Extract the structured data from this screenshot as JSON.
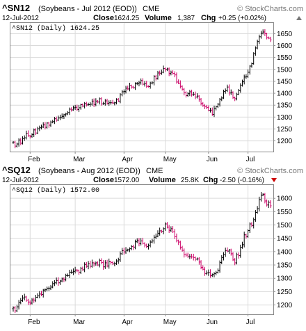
{
  "chart_data": [
    {
      "type": "ohlc",
      "symbol": "^SN12",
      "description": "(Soybeans - Jul 2012 (EOD))",
      "exchange": "CME",
      "brand": "© StockCharts.com",
      "date": "12-Jul-2012",
      "close_label": "Close",
      "close": "1624.25",
      "volume_label": "Volume",
      "volume": "1,387",
      "chg_label": "Chg",
      "chg": "+0.25 (+0.02%)",
      "chg_dir": "up",
      "legend": "^SN12 (Daily) 1624.25",
      "ylim": [
        1155,
        1695
      ],
      "yticks": [
        1200,
        1250,
        1300,
        1350,
        1400,
        1450,
        1500,
        1550,
        1600,
        1650
      ],
      "x_count": 138,
      "month_labels": [
        {
          "label": "Feb",
          "index": 9
        },
        {
          "label": "Mar",
          "index": 33
        },
        {
          "label": "Apr",
          "index": 59
        },
        {
          "label": "May",
          "index": 81
        },
        {
          "label": "Jun",
          "index": 104
        },
        {
          "label": "Jul",
          "index": 125
        }
      ],
      "grid": true,
      "anchors": [
        [
          0,
          1185
        ],
        [
          10,
          1225
        ],
        [
          30,
          1330
        ],
        [
          55,
          1365
        ],
        [
          58,
          1405
        ],
        [
          68,
          1450
        ],
        [
          72,
          1420
        ],
        [
          80,
          1490
        ],
        [
          82,
          1510
        ],
        [
          86,
          1470
        ],
        [
          92,
          1390
        ],
        [
          96,
          1405
        ],
        [
          104,
          1330
        ],
        [
          107,
          1320
        ],
        [
          112,
          1400
        ],
        [
          114,
          1430
        ],
        [
          118,
          1370
        ],
        [
          124,
          1470
        ],
        [
          127,
          1515
        ],
        [
          131,
          1650
        ],
        [
          133,
          1670
        ],
        [
          135,
          1640
        ],
        [
          137,
          1620
        ]
      ],
      "closes": [
        1195,
        1178,
        1187,
        1204,
        1190,
        1210,
        1213,
        1232,
        1221,
        1219,
        1227,
        1246,
        1233,
        1251,
        1255,
        1258,
        1267,
        1257,
        1275,
        1266,
        1279,
        1281,
        1293,
        1287,
        1296,
        1299,
        1303,
        1310,
        1313,
        1319,
        1333,
        1330,
        1339,
        1341,
        1332,
        1339,
        1352,
        1346,
        1357,
        1351,
        1352,
        1354,
        1367,
        1353,
        1367,
        1363,
        1377,
        1355,
        1357,
        1368,
        1358,
        1360,
        1360,
        1359,
        1360,
        1374,
        1367,
        1393,
        1406,
        1407,
        1421,
        1418,
        1432,
        1426,
        1423,
        1440,
        1440,
        1444,
        1453,
        1438,
        1440,
        1429,
        1428,
        1443,
        1444,
        1469,
        1462,
        1485,
        1484,
        1488,
        1504,
        1499,
        1502,
        1483,
        1488,
        1483,
        1477,
        1447,
        1442,
        1429,
        1417,
        1402,
        1390,
        1398,
        1406,
        1393,
        1396,
        1384,
        1388,
        1375,
        1357,
        1348,
        1343,
        1340,
        1328,
        1329,
        1311,
        1336,
        1343,
        1354,
        1374,
        1380,
        1407,
        1411,
        1426,
        1401,
        1404,
        1381,
        1377,
        1396,
        1411,
        1434,
        1448,
        1468,
        1469,
        1488,
        1514,
        1524,
        1566,
        1590,
        1617,
        1637,
        1652,
        1657,
        1650,
        1633,
        1631,
        1624
      ]
    },
    {
      "type": "ohlc",
      "symbol": "^SQ12",
      "description": "(Soybeans - Aug 2012 (EOD))",
      "exchange": "CME",
      "brand": "© StockCharts.com",
      "date": "12-Jul-2012",
      "close_label": "Close",
      "close": "1572.00",
      "volume_label": "Volume",
      "volume": "25.8K",
      "chg_label": "Chg",
      "chg": "-2.50 (-0.16%)",
      "chg_dir": "down",
      "legend": "^SQ12 (Daily) 1572.00",
      "ylim": [
        1165,
        1650
      ],
      "yticks": [
        1200,
        1250,
        1300,
        1350,
        1400,
        1450,
        1500,
        1550,
        1600
      ],
      "x_count": 138,
      "month_labels": [
        {
          "label": "Feb",
          "index": 9
        },
        {
          "label": "Mar",
          "index": 33
        },
        {
          "label": "Apr",
          "index": 59
        },
        {
          "label": "May",
          "index": 81
        },
        {
          "label": "Jun",
          "index": 104
        },
        {
          "label": "Jul",
          "index": 125
        }
      ],
      "grid": true,
      "anchors": [
        [
          0,
          1180
        ],
        [
          6,
          1225
        ],
        [
          8,
          1205
        ],
        [
          10,
          1215
        ],
        [
          30,
          1320
        ],
        [
          55,
          1360
        ],
        [
          58,
          1395
        ],
        [
          68,
          1440
        ],
        [
          72,
          1410
        ],
        [
          80,
          1480
        ],
        [
          82,
          1495
        ],
        [
          86,
          1460
        ],
        [
          92,
          1380
        ],
        [
          96,
          1395
        ],
        [
          104,
          1310
        ],
        [
          107,
          1305
        ],
        [
          112,
          1385
        ],
        [
          114,
          1420
        ],
        [
          118,
          1360
        ],
        [
          124,
          1460
        ],
        [
          127,
          1500
        ],
        [
          131,
          1600
        ],
        [
          133,
          1625
        ],
        [
          135,
          1580
        ],
        [
          137,
          1570
        ]
      ],
      "closes": [
        1189,
        1178,
        1193,
        1210,
        1216,
        1226,
        1230,
        1218,
        1211,
        1207,
        1219,
        1218,
        1229,
        1234,
        1241,
        1239,
        1256,
        1257,
        1263,
        1263,
        1267,
        1280,
        1283,
        1292,
        1283,
        1290,
        1298,
        1296,
        1310,
        1310,
        1323,
        1323,
        1326,
        1331,
        1328,
        1323,
        1337,
        1332,
        1352,
        1345,
        1355,
        1345,
        1358,
        1354,
        1358,
        1350,
        1367,
        1359,
        1343,
        1358,
        1346,
        1362,
        1359,
        1354,
        1356,
        1365,
        1369,
        1392,
        1404,
        1399,
        1405,
        1407,
        1411,
        1419,
        1417,
        1437,
        1441,
        1430,
        1440,
        1431,
        1425,
        1419,
        1424,
        1436,
        1440,
        1454,
        1458,
        1469,
        1478,
        1476,
        1486,
        1504,
        1492,
        1480,
        1486,
        1474,
        1456,
        1441,
        1436,
        1416,
        1405,
        1388,
        1387,
        1381,
        1381,
        1380,
        1378,
        1372,
        1373,
        1361,
        1341,
        1334,
        1318,
        1320,
        1322,
        1310,
        1314,
        1318,
        1322,
        1330,
        1359,
        1378,
        1388,
        1404,
        1402,
        1406,
        1392,
        1369,
        1358,
        1388,
        1385,
        1416,
        1426,
        1463,
        1456,
        1479,
        1504,
        1498,
        1520,
        1547,
        1561,
        1595,
        1612,
        1615,
        1590,
        1575,
        1585,
        1572
      ]
    }
  ]
}
